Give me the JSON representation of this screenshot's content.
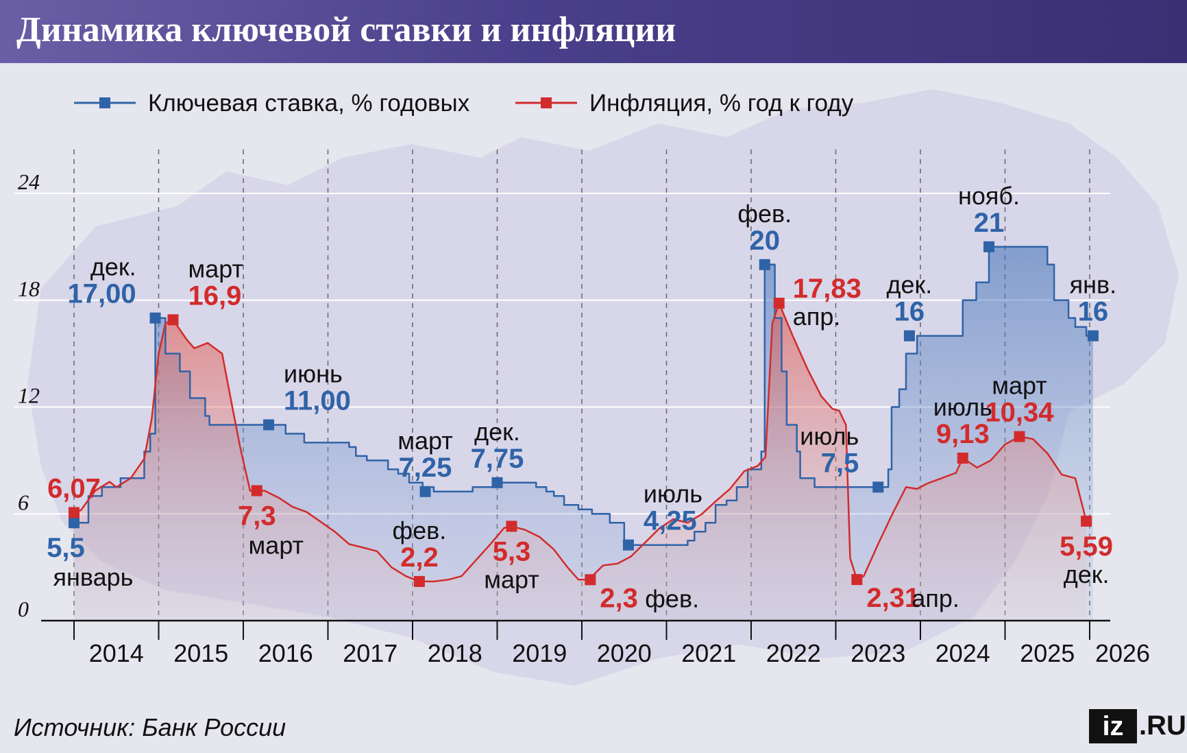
{
  "header": {
    "title": "Динамика ключевой ставки и инфляции"
  },
  "footer": {
    "source": "Источник: Банк России",
    "logo_mark": "iz",
    "logo_domain": ".RU"
  },
  "colors": {
    "rate": "#2f63a8",
    "inflation": "#d22b2b",
    "header": "#4a3f8a",
    "grid": "#ffffff",
    "axis": "#111111"
  },
  "chart_data": {
    "type": "line",
    "ylim": [
      0,
      24
    ],
    "yticks": [
      0,
      6,
      12,
      18,
      24
    ],
    "xlim": [
      2014,
      2026
    ],
    "xticks": [
      "2014",
      "2015",
      "2016",
      "2017",
      "2018",
      "2019",
      "2020",
      "2021",
      "2022",
      "2023",
      "2024",
      "2025",
      "2026"
    ],
    "series": [
      {
        "name": "Ключевая ставка, % годовых",
        "step": true,
        "color": "#2f63a8",
        "points": [
          [
            2014.0,
            5.5
          ],
          [
            2014.17,
            7.0
          ],
          [
            2014.33,
            7.5
          ],
          [
            2014.55,
            8.0
          ],
          [
            2014.83,
            9.5
          ],
          [
            2014.9,
            10.5
          ],
          [
            2014.96,
            17.0
          ],
          [
            2015.08,
            15.0
          ],
          [
            2015.25,
            14.0
          ],
          [
            2015.37,
            12.5
          ],
          [
            2015.55,
            11.5
          ],
          [
            2015.6,
            11.0
          ],
          [
            2016.5,
            10.5
          ],
          [
            2016.72,
            10.0
          ],
          [
            2017.25,
            9.75
          ],
          [
            2017.33,
            9.25
          ],
          [
            2017.46,
            9.0
          ],
          [
            2017.71,
            8.5
          ],
          [
            2017.83,
            8.25
          ],
          [
            2017.96,
            7.75
          ],
          [
            2018.12,
            7.5
          ],
          [
            2018.25,
            7.25
          ],
          [
            2018.71,
            7.5
          ],
          [
            2018.96,
            7.75
          ],
          [
            2019.46,
            7.5
          ],
          [
            2019.58,
            7.25
          ],
          [
            2019.67,
            7.0
          ],
          [
            2019.79,
            6.5
          ],
          [
            2019.96,
            6.25
          ],
          [
            2020.12,
            6.0
          ],
          [
            2020.33,
            5.5
          ],
          [
            2020.5,
            4.5
          ],
          [
            2020.55,
            4.25
          ],
          [
            2021.25,
            4.5
          ],
          [
            2021.33,
            5.0
          ],
          [
            2021.46,
            5.5
          ],
          [
            2021.58,
            6.5
          ],
          [
            2021.71,
            6.75
          ],
          [
            2021.83,
            7.5
          ],
          [
            2021.96,
            8.5
          ],
          [
            2022.12,
            9.5
          ],
          [
            2022.16,
            20.0
          ],
          [
            2022.28,
            17.0
          ],
          [
            2022.36,
            14.0
          ],
          [
            2022.42,
            11.0
          ],
          [
            2022.54,
            9.5
          ],
          [
            2022.58,
            8.0
          ],
          [
            2022.75,
            7.5
          ],
          [
            2023.62,
            8.5
          ],
          [
            2023.66,
            12.0
          ],
          [
            2023.75,
            13.0
          ],
          [
            2023.83,
            15.0
          ],
          [
            2023.96,
            16.0
          ],
          [
            2024.5,
            18.0
          ],
          [
            2024.66,
            19.0
          ],
          [
            2024.81,
            21.0
          ],
          [
            2025.5,
            20.0
          ],
          [
            2025.58,
            18.0
          ],
          [
            2025.75,
            17.0
          ],
          [
            2025.83,
            16.5
          ],
          [
            2025.96,
            16.0
          ],
          [
            2026.04,
            16.0
          ]
        ],
        "markers": [
          [
            2014.0,
            5.5
          ],
          [
            2014.96,
            17.0
          ],
          [
            2016.3,
            11.0
          ],
          [
            2018.15,
            7.25
          ],
          [
            2019.0,
            7.75
          ],
          [
            2020.55,
            4.25
          ],
          [
            2022.16,
            20.0
          ],
          [
            2023.5,
            7.5
          ],
          [
            2023.87,
            16.0
          ],
          [
            2024.81,
            21.0
          ],
          [
            2026.04,
            16.0
          ]
        ]
      },
      {
        "name": "Инфляция, % год к году",
        "step": false,
        "color": "#d22b2b",
        "points": [
          [
            2014.0,
            6.07
          ],
          [
            2014.08,
            6.2
          ],
          [
            2014.25,
            7.3
          ],
          [
            2014.42,
            7.8
          ],
          [
            2014.5,
            7.5
          ],
          [
            2014.67,
            8.0
          ],
          [
            2014.83,
            9.1
          ],
          [
            2014.92,
            11.4
          ],
          [
            2015.0,
            15.0
          ],
          [
            2015.08,
            16.7
          ],
          [
            2015.17,
            16.9
          ],
          [
            2015.33,
            15.8
          ],
          [
            2015.42,
            15.3
          ],
          [
            2015.58,
            15.6
          ],
          [
            2015.75,
            15.0
          ],
          [
            2015.83,
            13.0
          ],
          [
            2015.96,
            9.8
          ],
          [
            2016.08,
            7.3
          ],
          [
            2016.25,
            7.3
          ],
          [
            2016.42,
            6.9
          ],
          [
            2016.58,
            6.4
          ],
          [
            2016.75,
            6.1
          ],
          [
            2016.96,
            5.4
          ],
          [
            2017.08,
            5.0
          ],
          [
            2017.25,
            4.3
          ],
          [
            2017.42,
            4.1
          ],
          [
            2017.58,
            3.9
          ],
          [
            2017.75,
            3.0
          ],
          [
            2017.92,
            2.5
          ],
          [
            2018.08,
            2.2
          ],
          [
            2018.25,
            2.2
          ],
          [
            2018.42,
            2.3
          ],
          [
            2018.58,
            2.5
          ],
          [
            2018.75,
            3.4
          ],
          [
            2018.92,
            4.3
          ],
          [
            2019.08,
            5.2
          ],
          [
            2019.17,
            5.3
          ],
          [
            2019.33,
            5.1
          ],
          [
            2019.5,
            4.7
          ],
          [
            2019.67,
            4.0
          ],
          [
            2019.83,
            3.0
          ],
          [
            2019.96,
            2.3
          ],
          [
            2020.08,
            2.3
          ],
          [
            2020.25,
            3.1
          ],
          [
            2020.42,
            3.2
          ],
          [
            2020.58,
            3.6
          ],
          [
            2020.75,
            4.4
          ],
          [
            2020.92,
            5.2
          ],
          [
            2021.08,
            5.7
          ],
          [
            2021.25,
            5.5
          ],
          [
            2021.42,
            6.0
          ],
          [
            2021.58,
            6.7
          ],
          [
            2021.75,
            7.4
          ],
          [
            2021.92,
            8.4
          ],
          [
            2022.08,
            8.7
          ],
          [
            2022.17,
            9.2
          ],
          [
            2022.25,
            16.7
          ],
          [
            2022.33,
            17.83
          ],
          [
            2022.5,
            15.9
          ],
          [
            2022.67,
            14.1
          ],
          [
            2022.83,
            12.6
          ],
          [
            2022.96,
            11.9
          ],
          [
            2023.04,
            11.8
          ],
          [
            2023.12,
            11.0
          ],
          [
            2023.17,
            3.5
          ],
          [
            2023.25,
            2.31
          ],
          [
            2023.33,
            2.5
          ],
          [
            2023.5,
            4.3
          ],
          [
            2023.67,
            6.0
          ],
          [
            2023.83,
            7.5
          ],
          [
            2023.96,
            7.4
          ],
          [
            2024.08,
            7.7
          ],
          [
            2024.25,
            8.0
          ],
          [
            2024.42,
            8.3
          ],
          [
            2024.5,
            9.13
          ],
          [
            2024.67,
            8.6
          ],
          [
            2024.83,
            9.0
          ],
          [
            2025.0,
            9.9
          ],
          [
            2025.17,
            10.34
          ],
          [
            2025.33,
            10.2
          ],
          [
            2025.5,
            9.4
          ],
          [
            2025.67,
            8.2
          ],
          [
            2025.83,
            8.0
          ],
          [
            2025.96,
            5.59
          ]
        ],
        "markers": [
          [
            2014.0,
            6.07
          ],
          [
            2015.17,
            16.9
          ],
          [
            2016.16,
            7.3
          ],
          [
            2018.08,
            2.2
          ],
          [
            2019.17,
            5.3
          ],
          [
            2020.1,
            2.3
          ],
          [
            2022.33,
            17.83
          ],
          [
            2023.25,
            2.31
          ],
          [
            2024.5,
            9.13
          ],
          [
            2025.17,
            10.34
          ],
          [
            2025.96,
            5.59
          ]
        ]
      }
    ],
    "annotations": [
      {
        "text": "5,5",
        "x": 2014.0,
        "y": 5.5,
        "series": 0,
        "bold": true,
        "pos": "below-left"
      },
      {
        "text": "январь",
        "x": 2014.0,
        "y": 5.5,
        "series": -1,
        "bold": false,
        "pos": "below2-left"
      },
      {
        "text": "дек.",
        "x": 2014.96,
        "y": 17.0,
        "series": -1,
        "bold": false,
        "pos": "above2-left"
      },
      {
        "text": "17,00",
        "x": 2014.96,
        "y": 17.0,
        "series": 0,
        "bold": true,
        "pos": "above-left"
      },
      {
        "text": "март",
        "x": 2015.17,
        "y": 16.9,
        "series": -1,
        "bold": false,
        "pos": "above2-right"
      },
      {
        "text": "16,9",
        "x": 2015.17,
        "y": 16.9,
        "series": 1,
        "bold": true,
        "pos": "above-right"
      },
      {
        "text": "6,07",
        "x": 2014.0,
        "y": 6.07,
        "series": 1,
        "bold": true,
        "pos": "above"
      },
      {
        "text": "июнь",
        "x": 2016.3,
        "y": 11.0,
        "series": -1,
        "bold": false,
        "pos": "above2-right"
      },
      {
        "text": "11,00",
        "x": 2016.3,
        "y": 11.0,
        "series": 0,
        "bold": true,
        "pos": "above-right"
      },
      {
        "text": "7,3",
        "x": 2016.16,
        "y": 7.3,
        "series": 1,
        "bold": true,
        "pos": "below"
      },
      {
        "text": "март",
        "x": 2016.16,
        "y": 7.3,
        "series": -1,
        "bold": false,
        "pos": "below2-left"
      },
      {
        "text": "март",
        "x": 2018.15,
        "y": 7.25,
        "series": -1,
        "bold": false,
        "pos": "above2"
      },
      {
        "text": "7,25",
        "x": 2018.15,
        "y": 7.25,
        "series": 0,
        "bold": true,
        "pos": "above"
      },
      {
        "text": "дек.",
        "x": 2019.0,
        "y": 7.75,
        "series": -1,
        "bold": false,
        "pos": "above2"
      },
      {
        "text": "7,75",
        "x": 2019.0,
        "y": 7.75,
        "series": 0,
        "bold": true,
        "pos": "above"
      },
      {
        "text": "фев.",
        "x": 2018.08,
        "y": 2.2,
        "series": -1,
        "bold": false,
        "pos": "above2"
      },
      {
        "text": "2,2",
        "x": 2018.08,
        "y": 2.2,
        "series": 1,
        "bold": true,
        "pos": "above"
      },
      {
        "text": "5,3",
        "x": 2019.17,
        "y": 5.3,
        "series": 1,
        "bold": true,
        "pos": "below"
      },
      {
        "text": "март",
        "x": 2019.17,
        "y": 5.3,
        "series": -1,
        "bold": false,
        "pos": "below2"
      },
      {
        "text": "июль",
        "x": 2020.55,
        "y": 4.25,
        "series": -1,
        "bold": false,
        "pos": "above2-right"
      },
      {
        "text": "4,25",
        "x": 2020.55,
        "y": 4.25,
        "series": 0,
        "bold": true,
        "pos": "above-right"
      },
      {
        "text": "2,3",
        "x": 2020.1,
        "y": 2.3,
        "series": 1,
        "bold": true,
        "pos": "below-right"
      },
      {
        "text": "фев.",
        "x": 2020.1,
        "y": 2.3,
        "series": -1,
        "bold": false,
        "pos": "below-right2"
      },
      {
        "text": "фев.",
        "x": 2022.16,
        "y": 20.0,
        "series": -1,
        "bold": false,
        "pos": "above2"
      },
      {
        "text": "20",
        "x": 2022.16,
        "y": 20.0,
        "series": 0,
        "bold": true,
        "pos": "above"
      },
      {
        "text": "17,83",
        "x": 2022.33,
        "y": 17.83,
        "series": 1,
        "bold": true,
        "pos": "right-up"
      },
      {
        "text": "апр.",
        "x": 2022.33,
        "y": 17.83,
        "series": -1,
        "bold": false,
        "pos": "right-down"
      },
      {
        "text": "июль",
        "x": 2023.5,
        "y": 7.5,
        "series": -1,
        "bold": false,
        "pos": "above2-left"
      },
      {
        "text": "7,5",
        "x": 2023.5,
        "y": 7.5,
        "series": 0,
        "bold": true,
        "pos": "above-left"
      },
      {
        "text": "дек.",
        "x": 2023.87,
        "y": 16.0,
        "series": -1,
        "bold": false,
        "pos": "above2"
      },
      {
        "text": "16",
        "x": 2023.87,
        "y": 16.0,
        "series": 0,
        "bold": true,
        "pos": "above"
      },
      {
        "text": "2,31",
        "x": 2023.25,
        "y": 2.31,
        "series": 1,
        "bold": true,
        "pos": "below-right"
      },
      {
        "text": "апр.",
        "x": 2023.25,
        "y": 2.31,
        "series": -1,
        "bold": false,
        "pos": "below-right2"
      },
      {
        "text": "нояб.",
        "x": 2024.81,
        "y": 21.0,
        "series": -1,
        "bold": false,
        "pos": "above2"
      },
      {
        "text": "21",
        "x": 2024.81,
        "y": 21.0,
        "series": 0,
        "bold": true,
        "pos": "above"
      },
      {
        "text": "июль",
        "x": 2024.5,
        "y": 9.13,
        "series": -1,
        "bold": false,
        "pos": "above2"
      },
      {
        "text": "9,13",
        "x": 2024.5,
        "y": 9.13,
        "series": 1,
        "bold": true,
        "pos": "above"
      },
      {
        "text": "март",
        "x": 2025.17,
        "y": 10.34,
        "series": -1,
        "bold": false,
        "pos": "above2"
      },
      {
        "text": "10,34",
        "x": 2025.17,
        "y": 10.34,
        "series": 1,
        "bold": true,
        "pos": "above"
      },
      {
        "text": "янв.",
        "x": 2026.04,
        "y": 16.0,
        "series": -1,
        "bold": false,
        "pos": "above2"
      },
      {
        "text": "16",
        "x": 2026.04,
        "y": 16.0,
        "series": 0,
        "bold": true,
        "pos": "above"
      },
      {
        "text": "5,59",
        "x": 2025.96,
        "y": 5.59,
        "series": 1,
        "bold": true,
        "pos": "below"
      },
      {
        "text": "дек.",
        "x": 2025.96,
        "y": 5.59,
        "series": -1,
        "bold": false,
        "pos": "below2"
      }
    ],
    "legend": "top",
    "grid": true
  }
}
